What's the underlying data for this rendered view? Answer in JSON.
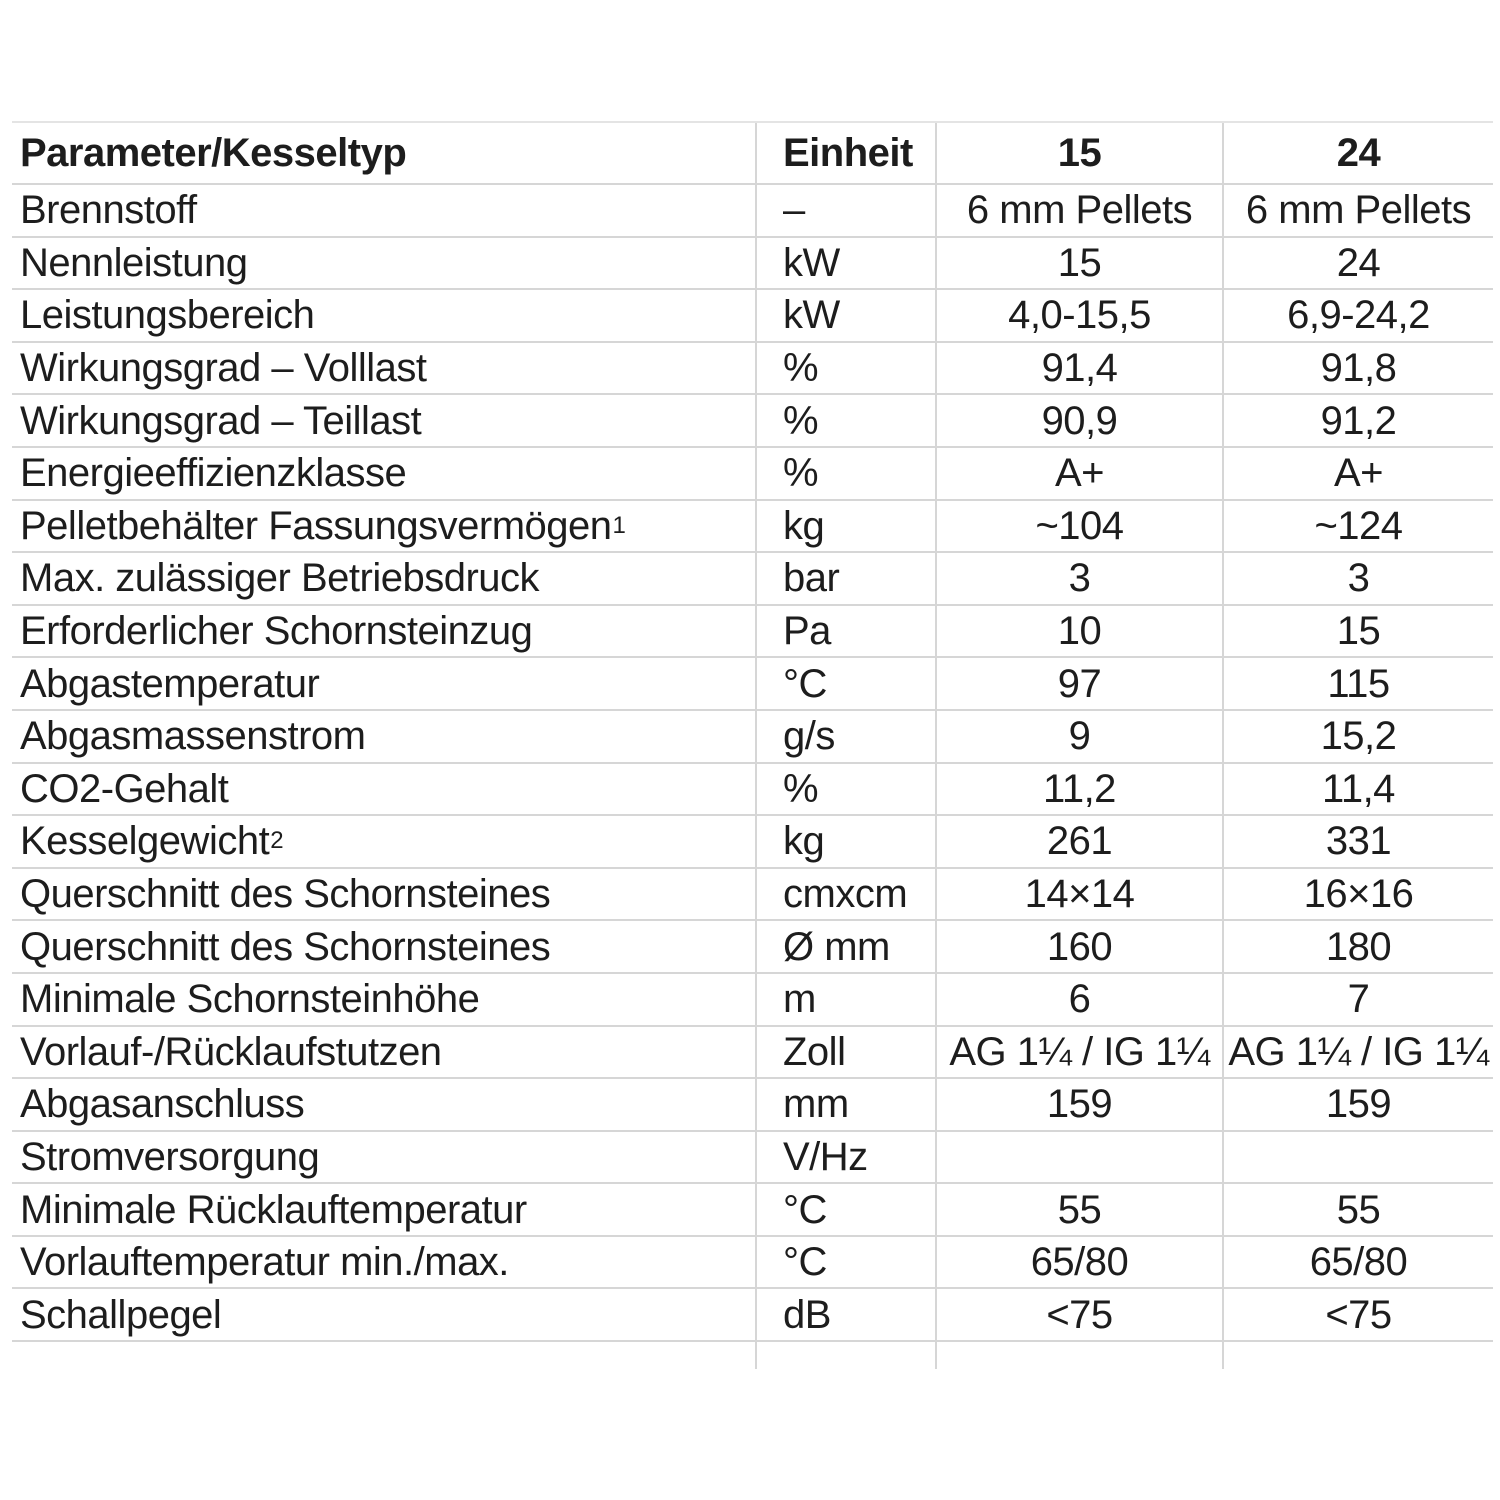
{
  "colors": {
    "background": "#ffffff",
    "grid_line": "#d6d6d6",
    "text": "#1d1d1d"
  },
  "table": {
    "header": {
      "param": "Parameter/Kesseltyp",
      "unit": "Einheit",
      "model15": "15",
      "model24": "24"
    },
    "rows": [
      {
        "param": "Brennstoff",
        "sup": "",
        "unit": "–",
        "v15": "6 mm Pellets",
        "v24": "6 mm Pellets"
      },
      {
        "param": "Nennleistung",
        "sup": "",
        "unit": "kW",
        "v15": "15",
        "v24": "24"
      },
      {
        "param": "Leistungsbereich",
        "sup": "",
        "unit": "kW",
        "v15": "4,0-15,5",
        "v24": "6,9-24,2"
      },
      {
        "param": "Wirkungsgrad – Volllast",
        "sup": "",
        "unit": "%",
        "v15": "91,4",
        "v24": "91,8"
      },
      {
        "param": "Wirkungsgrad – Teillast",
        "sup": "",
        "unit": "%",
        "v15": "90,9",
        "v24": "91,2"
      },
      {
        "param": "Energieeffizienzklasse",
        "sup": "",
        "unit": "%",
        "v15": "A+",
        "v24": "A+"
      },
      {
        "param": "Pelletbehälter Fassungsvermögen",
        "sup": "1",
        "unit": "kg",
        "v15": "~104",
        "v24": "~124"
      },
      {
        "param": "Max. zulässiger Betriebsdruck",
        "sup": "",
        "unit": "bar",
        "v15": "3",
        "v24": "3"
      },
      {
        "param": "Erforderlicher Schornsteinzug",
        "sup": "",
        "unit": "Pa",
        "v15": "10",
        "v24": "15"
      },
      {
        "param": "Abgastemperatur",
        "sup": "",
        "unit": "°C",
        "v15": "97",
        "v24": "115"
      },
      {
        "param": "Abgasmassenstrom",
        "sup": "",
        "unit": "g/s",
        "v15": "9",
        "v24": "15,2"
      },
      {
        "param": "CO2-Gehalt",
        "sup": "",
        "unit": "%",
        "v15": "11,2",
        "v24": "11,4"
      },
      {
        "param": "Kesselgewicht",
        "sup": "2",
        "unit": "kg",
        "v15": "261",
        "v24": "331"
      },
      {
        "param": "Querschnitt des Schornsteines",
        "sup": "",
        "unit": "cmxcm",
        "v15": "14×14",
        "v24": "16×16"
      },
      {
        "param": "Querschnitt des Schornsteines",
        "sup": "",
        "unit": "Ø mm",
        "v15": "160",
        "v24": "180"
      },
      {
        "param": "Minimale Schornsteinhöhe",
        "sup": "",
        "unit": "m",
        "v15": "6",
        "v24": "7"
      },
      {
        "param": "Vorlauf-/Rücklaufstutzen",
        "sup": "",
        "unit": "Zoll",
        "v15": "AG 1¼ / IG 1¼",
        "v24": "AG 1¼ / IG 1¼"
      },
      {
        "param": "Abgasanschluss",
        "sup": "",
        "unit": "mm",
        "v15": "159",
        "v24": "159"
      },
      {
        "param": "Stromversorgung",
        "sup": "",
        "unit": "V/Hz",
        "v15": "",
        "v24": ""
      },
      {
        "param": "Minimale Rücklauftemperatur",
        "sup": "",
        "unit": "°C",
        "v15": "55",
        "v24": "55"
      },
      {
        "param": "Vorlauftemperatur min./max.",
        "sup": "",
        "unit": "°C",
        "v15": "65/80",
        "v24": "65/80"
      },
      {
        "param": "Schallpegel",
        "sup": "",
        "unit": "dB",
        "v15": "<75",
        "v24": "<75"
      }
    ]
  }
}
